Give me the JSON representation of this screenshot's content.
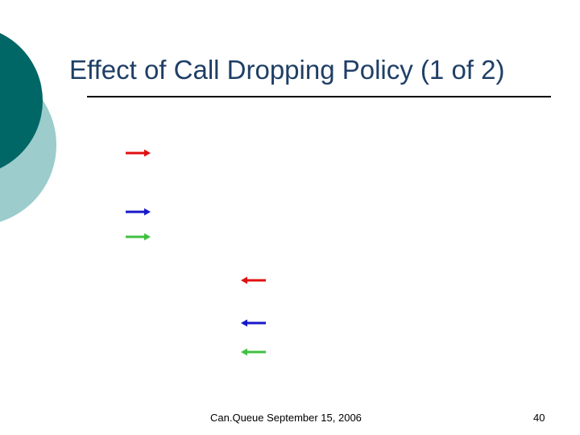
{
  "slide": {
    "title": "Effect of Call Dropping Policy (1 of 2)",
    "footer_text": "Can.Queue  September 15, 2006",
    "page_number": "40"
  },
  "colors": {
    "teal_dark": "#006666",
    "teal_light": "#9ccccc",
    "title_text": "#1f3f66",
    "arrow_red": "#e01010",
    "arrow_blue": "#1818c8",
    "arrow_green": "#40c040"
  },
  "arrows": [
    {
      "name": "red-right-arrow-1",
      "direction": "right",
      "color": "red"
    },
    {
      "name": "blue-right-arrow-1",
      "direction": "right",
      "color": "blue"
    },
    {
      "name": "green-right-arrow-1",
      "direction": "right",
      "color": "green"
    },
    {
      "name": "red-left-arrow-1",
      "direction": "left",
      "color": "red"
    },
    {
      "name": "blue-left-arrow-1",
      "direction": "left",
      "color": "blue"
    },
    {
      "name": "green-left-arrow-1",
      "direction": "left",
      "color": "green"
    }
  ]
}
